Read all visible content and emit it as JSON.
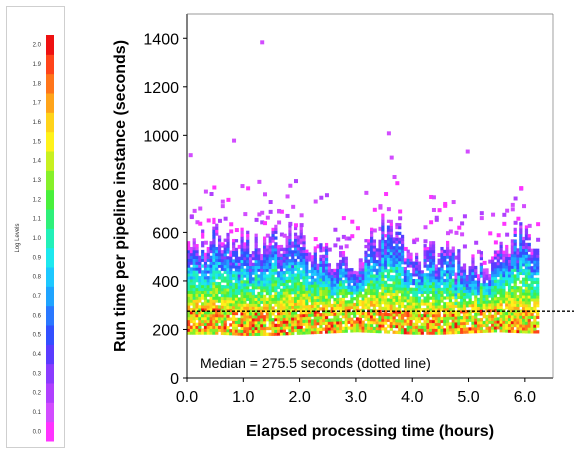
{
  "chart_data": {
    "type": "heatmap",
    "title": "",
    "xlabel": "Elapsed processing time (hours)",
    "ylabel": "Run time per pipeline instance (seconds)",
    "xlim": [
      0.0,
      6.5
    ],
    "ylim": [
      0,
      1500
    ],
    "x_ticks": [
      "0.0",
      "1.0",
      "2.0",
      "3.0",
      "4.0",
      "5.0",
      "6.0"
    ],
    "y_ticks": [
      "0",
      "200",
      "400",
      "600",
      "800",
      "1000",
      "1200",
      "1400"
    ],
    "annotation": "Median = 275.5 seconds (dotted line)",
    "median_line": 275.5,
    "colorbar": {
      "label": "Log Levels",
      "ticks": [
        "0.0",
        "0.1",
        "0.2",
        "0.3",
        "0.4",
        "0.5",
        "0.6",
        "0.7",
        "0.8",
        "0.9",
        "1.0",
        "1.1",
        "1.2",
        "1.3",
        "1.4",
        "1.5",
        "1.6",
        "1.7",
        "1.8",
        "1.9",
        "2.0"
      ],
      "colors": [
        "#ff33ff",
        "#d24cff",
        "#b040ff",
        "#8a3cff",
        "#5a3cff",
        "#3250ff",
        "#2a78ff",
        "#1fa4ff",
        "#1dc8ff",
        "#1de8ee",
        "#22f0b8",
        "#2ef07a",
        "#49f03c",
        "#86f02a",
        "#c8f020",
        "#fff21a",
        "#ffd31a",
        "#ffa41a",
        "#ff751a",
        "#ff441a",
        "#ee1111"
      ]
    },
    "density_profile": [
      {
        "x": 0.0,
        "low": 180,
        "median": 275,
        "high": 520
      },
      {
        "x": 0.5,
        "low": 180,
        "median": 280,
        "high": 580
      },
      {
        "x": 1.0,
        "low": 175,
        "median": 265,
        "high": 540
      },
      {
        "x": 1.5,
        "low": 175,
        "median": 265,
        "high": 580
      },
      {
        "x": 2.0,
        "low": 180,
        "median": 270,
        "high": 560
      },
      {
        "x": 2.5,
        "low": 185,
        "median": 280,
        "high": 480
      },
      {
        "x": 3.0,
        "low": 190,
        "median": 285,
        "high": 470
      },
      {
        "x": 3.5,
        "low": 185,
        "median": 280,
        "high": 600
      },
      {
        "x": 4.0,
        "low": 180,
        "median": 265,
        "high": 500
      },
      {
        "x": 4.5,
        "low": 180,
        "median": 260,
        "high": 500
      },
      {
        "x": 5.0,
        "low": 185,
        "median": 275,
        "high": 440
      },
      {
        "x": 5.5,
        "low": 190,
        "median": 280,
        "high": 480
      },
      {
        "x": 6.0,
        "low": 185,
        "median": 280,
        "high": 580
      },
      {
        "x": 6.2,
        "low": 185,
        "median": 275,
        "high": 520
      }
    ],
    "outliers": [
      {
        "x": 0.03,
        "y": 910
      },
      {
        "x": 0.3,
        "y": 760
      },
      {
        "x": 0.8,
        "y": 970
      },
      {
        "x": 0.6,
        "y": 700
      },
      {
        "x": 1.25,
        "y": 800
      },
      {
        "x": 1.6,
        "y": 680
      },
      {
        "x": 1.75,
        "y": 740
      },
      {
        "x": 1.3,
        "y": 1375
      },
      {
        "x": 3.55,
        "y": 1000
      },
      {
        "x": 3.6,
        "y": 900
      },
      {
        "x": 3.65,
        "y": 820
      },
      {
        "x": 3.4,
        "y": 700
      },
      {
        "x": 4.95,
        "y": 925
      },
      {
        "x": 5.95,
        "y": 700
      }
    ]
  }
}
